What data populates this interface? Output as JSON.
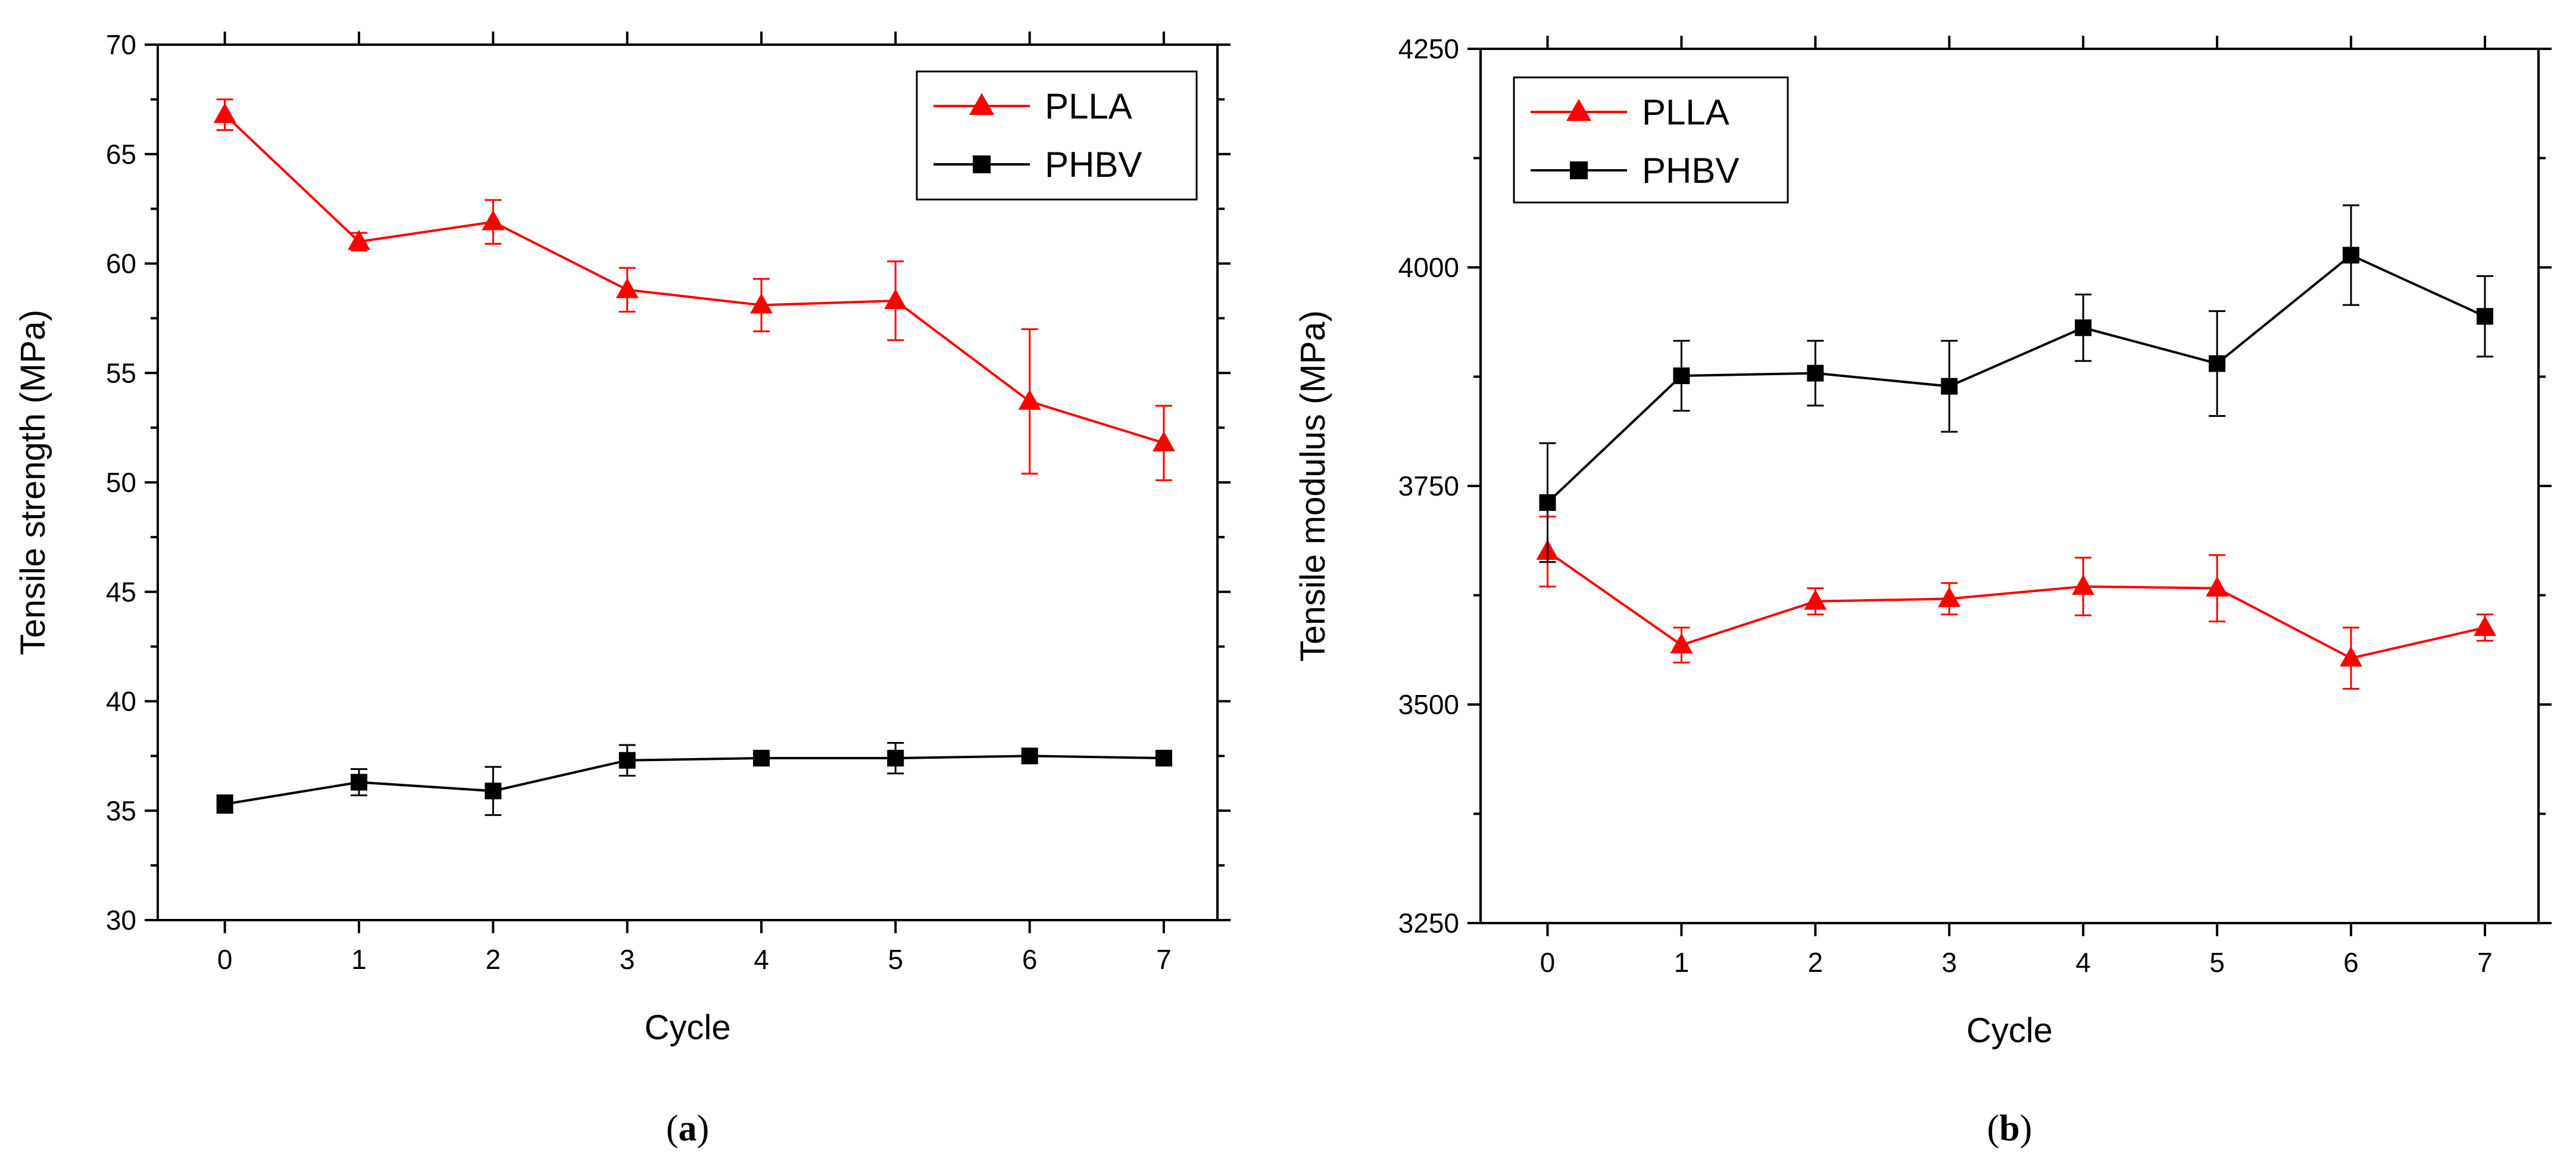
{
  "chart_data": [
    {
      "type": "line",
      "caption_letter": "a",
      "xlabel": "Cycle",
      "ylabel": "Tensile strength (MPa)",
      "x": [
        0,
        1,
        2,
        3,
        4,
        5,
        6,
        7
      ],
      "xlim": [
        -0.5,
        7.4
      ],
      "xticks": [
        "0",
        "1",
        "2",
        "3",
        "4",
        "5",
        "6",
        "7"
      ],
      "ylim": [
        30,
        70
      ],
      "yticks": [
        "30",
        "35",
        "40",
        "45",
        "50",
        "55",
        "60",
        "65",
        "70"
      ],
      "legend_position": "top-right",
      "series": [
        {
          "name": "PLLA",
          "color": "#ff0000",
          "marker": "triangle",
          "values": [
            66.8,
            61.0,
            61.9,
            58.8,
            58.1,
            58.3,
            53.7,
            51.8
          ],
          "errors": [
            0.7,
            0.4,
            1.0,
            1.0,
            1.2,
            1.8,
            3.3,
            1.7
          ]
        },
        {
          "name": "PHBV",
          "color": "#000000",
          "marker": "square",
          "values": [
            35.3,
            36.3,
            35.9,
            37.3,
            37.4,
            37.4,
            37.5,
            37.4
          ],
          "errors": [
            0.4,
            0.6,
            1.1,
            0.7,
            0.2,
            0.7,
            0.2,
            0.3
          ]
        }
      ]
    },
    {
      "type": "line",
      "caption_letter": "b",
      "xlabel": "Cycle",
      "ylabel": "Tensile modulus (MPa)",
      "x": [
        0,
        1,
        2,
        3,
        4,
        5,
        6,
        7
      ],
      "xlim": [
        -0.5,
        7.4
      ],
      "xticks": [
        "0",
        "1",
        "2",
        "3",
        "4",
        "5",
        "6",
        "7"
      ],
      "ylim": [
        3250,
        4250
      ],
      "yticks": [
        "3250",
        "3500",
        "3750",
        "4000",
        "4250"
      ],
      "legend_position": "top-left",
      "series": [
        {
          "name": "PLLA",
          "color": "#ff0000",
          "marker": "triangle",
          "values": [
            3675,
            3568,
            3618,
            3621,
            3635,
            3633,
            3553,
            3588
          ],
          "errors": [
            40,
            20,
            15,
            18,
            33,
            38,
            35,
            15
          ]
        },
        {
          "name": "PHBV",
          "color": "#000000",
          "marker": "square",
          "values": [
            3731,
            3876,
            3879,
            3864,
            3931,
            3890,
            4014,
            3944
          ],
          "errors": [
            68,
            40,
            37,
            52,
            38,
            60,
            57,
            46
          ]
        }
      ]
    }
  ]
}
